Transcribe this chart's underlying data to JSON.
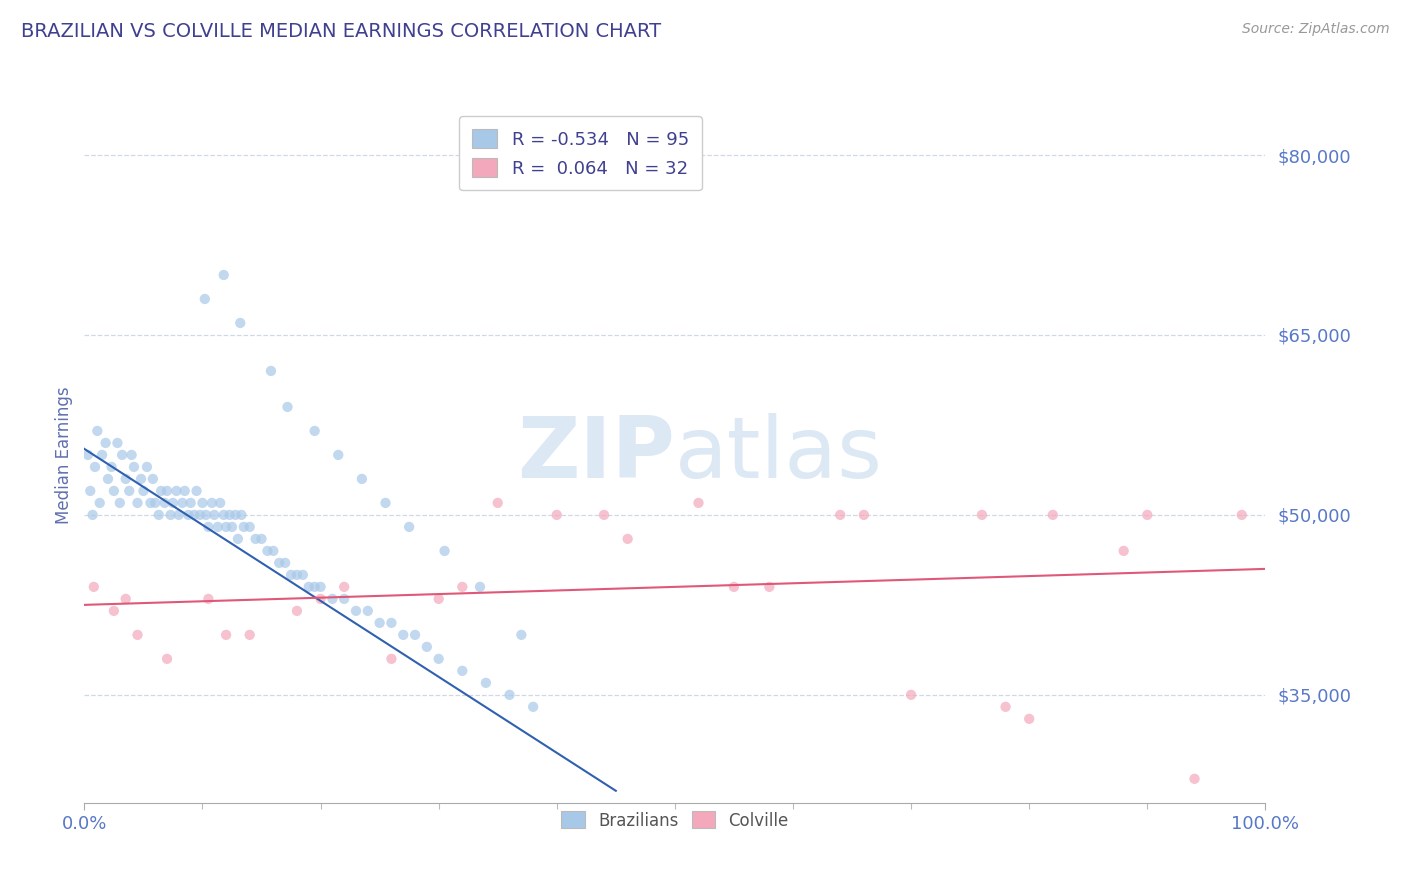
{
  "title": "BRAZILIAN VS COLVILLE MEDIAN EARNINGS CORRELATION CHART",
  "source_text": "Source: ZipAtlas.com",
  "ylabel": "Median Earnings",
  "xlim": [
    0.0,
    100.0
  ],
  "ylim": [
    26000,
    84000
  ],
  "yticks": [
    35000,
    50000,
    65000,
    80000
  ],
  "ytick_labels": [
    "$35,000",
    "$50,000",
    "$65,000",
    "$80,000"
  ],
  "xticks": [
    0.0,
    100.0
  ],
  "xtick_minor": [
    10,
    20,
    30,
    40,
    50,
    60,
    70,
    80,
    90
  ],
  "xtick_labels": [
    "0.0%",
    "100.0%"
  ],
  "color_blue": "#a8c8e8",
  "color_pink": "#f4a8bc",
  "color_blue_line": "#3060b0",
  "color_pink_line": "#e05878",
  "color_title": "#404090",
  "color_axis_label": "#6070b0",
  "color_tick_label": "#5878c8",
  "color_source": "#999999",
  "watermark_color": "#dce8f4",
  "background_color": "#ffffff",
  "grid_color": "#d0d8e8",
  "scatter_alpha": 0.7,
  "brazil_x": [
    0.3,
    0.5,
    0.7,
    0.9,
    1.1,
    1.3,
    1.5,
    1.8,
    2.0,
    2.3,
    2.5,
    2.8,
    3.0,
    3.2,
    3.5,
    3.8,
    4.0,
    4.2,
    4.5,
    4.8,
    5.0,
    5.3,
    5.6,
    5.8,
    6.0,
    6.3,
    6.5,
    6.8,
    7.0,
    7.3,
    7.5,
    7.8,
    8.0,
    8.3,
    8.5,
    8.8,
    9.0,
    9.3,
    9.5,
    9.8,
    10.0,
    10.3,
    10.5,
    10.8,
    11.0,
    11.3,
    11.5,
    11.8,
    12.0,
    12.3,
    12.5,
    12.8,
    13.0,
    13.3,
    13.5,
    14.0,
    14.5,
    15.0,
    15.5,
    16.0,
    16.5,
    17.0,
    17.5,
    18.0,
    18.5,
    19.0,
    19.5,
    20.0,
    21.0,
    22.0,
    23.0,
    24.0,
    25.0,
    26.0,
    27.0,
    28.0,
    29.0,
    30.0,
    32.0,
    34.0,
    36.0,
    38.0,
    10.2,
    11.8,
    13.2,
    15.8,
    17.2,
    19.5,
    21.5,
    23.5,
    25.5,
    27.5,
    30.5,
    33.5,
    37.0
  ],
  "brazil_y": [
    55000,
    52000,
    50000,
    54000,
    57000,
    51000,
    55000,
    56000,
    53000,
    54000,
    52000,
    56000,
    51000,
    55000,
    53000,
    52000,
    55000,
    54000,
    51000,
    53000,
    52000,
    54000,
    51000,
    53000,
    51000,
    50000,
    52000,
    51000,
    52000,
    50000,
    51000,
    52000,
    50000,
    51000,
    52000,
    50000,
    51000,
    50000,
    52000,
    50000,
    51000,
    50000,
    49000,
    51000,
    50000,
    49000,
    51000,
    50000,
    49000,
    50000,
    49000,
    50000,
    48000,
    50000,
    49000,
    49000,
    48000,
    48000,
    47000,
    47000,
    46000,
    46000,
    45000,
    45000,
    45000,
    44000,
    44000,
    44000,
    43000,
    43000,
    42000,
    42000,
    41000,
    41000,
    40000,
    40000,
    39000,
    38000,
    37000,
    36000,
    35000,
    34000,
    68000,
    70000,
    66000,
    62000,
    59000,
    57000,
    55000,
    53000,
    51000,
    49000,
    47000,
    44000,
    40000
  ],
  "colville_x": [
    0.8,
    2.5,
    4.5,
    7.0,
    10.5,
    14.0,
    18.0,
    22.0,
    26.0,
    30.0,
    35.0,
    40.0,
    46.0,
    52.0,
    58.0,
    64.0,
    70.0,
    76.0,
    82.0,
    88.0,
    94.0,
    98.0,
    3.5,
    12.0,
    20.0,
    32.0,
    44.0,
    55.0,
    66.0,
    78.0,
    90.0,
    80.0
  ],
  "colville_y": [
    44000,
    42000,
    40000,
    38000,
    43000,
    40000,
    42000,
    44000,
    38000,
    43000,
    51000,
    50000,
    48000,
    51000,
    44000,
    50000,
    35000,
    50000,
    50000,
    47000,
    28000,
    50000,
    43000,
    40000,
    43000,
    44000,
    50000,
    44000,
    50000,
    34000,
    50000,
    33000
  ],
  "trend_blue_x0": 0.0,
  "trend_blue_y0": 55500,
  "trend_blue_x1": 45.0,
  "trend_blue_y1": 27000,
  "trend_pink_x0": 0.0,
  "trend_pink_y0": 42500,
  "trend_pink_x1": 100.0,
  "trend_pink_y1": 45500
}
